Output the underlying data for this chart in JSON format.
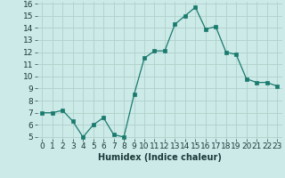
{
  "x": [
    0,
    1,
    2,
    3,
    4,
    5,
    6,
    7,
    8,
    9,
    10,
    11,
    12,
    13,
    14,
    15,
    16,
    17,
    18,
    19,
    20,
    21,
    22,
    23
  ],
  "y": [
    7.0,
    7.0,
    7.2,
    6.3,
    5.0,
    6.0,
    6.6,
    5.2,
    5.0,
    8.5,
    11.5,
    12.1,
    12.1,
    14.3,
    15.0,
    15.7,
    13.9,
    14.1,
    12.0,
    11.8,
    9.8,
    9.5,
    9.5,
    9.2
  ],
  "line_color": "#1a7a6e",
  "marker_color": "#1a7a6e",
  "bg_color": "#cceae7",
  "grid_color": "#b0d0cc",
  "xlabel": "Humidex (Indice chaleur)",
  "ylim": [
    5,
    16
  ],
  "xlim": [
    -0.5,
    23.5
  ],
  "yticks": [
    5,
    6,
    7,
    8,
    9,
    10,
    11,
    12,
    13,
    14,
    15,
    16
  ],
  "xticks": [
    0,
    1,
    2,
    3,
    4,
    5,
    6,
    7,
    8,
    9,
    10,
    11,
    12,
    13,
    14,
    15,
    16,
    17,
    18,
    19,
    20,
    21,
    22,
    23
  ],
  "xtick_labels": [
    "0",
    "1",
    "2",
    "3",
    "4",
    "5",
    "6",
    "7",
    "8",
    "9",
    "10",
    "11",
    "12",
    "13",
    "14",
    "15",
    "16",
    "17",
    "18",
    "19",
    "20",
    "21",
    "22",
    "23"
  ],
  "label_fontsize": 7,
  "tick_fontsize": 6.5
}
